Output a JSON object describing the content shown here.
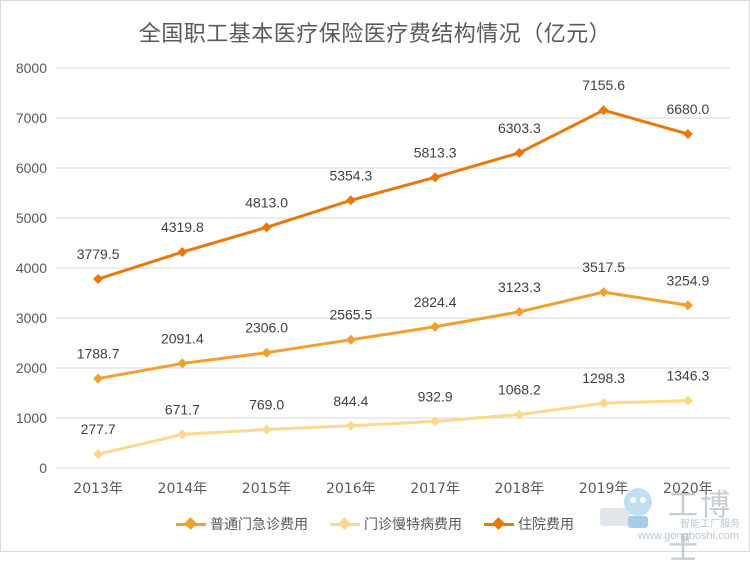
{
  "chart_data": {
    "type": "line",
    "title": "全国职工基本医疗保险医疗费结构情况（亿元）",
    "categories": [
      "2013年",
      "2014年",
      "2015年",
      "2016年",
      "2017年",
      "2018年",
      "2019年",
      "2020年"
    ],
    "ylim": [
      0,
      8000
    ],
    "yticks": [
      0,
      1000,
      2000,
      3000,
      4000,
      5000,
      6000,
      7000,
      8000
    ],
    "grid": true,
    "legend_position": "bottom",
    "series": [
      {
        "name": "普通门急诊费用",
        "color": "#F0A030",
        "values": [
          1788.7,
          2091.4,
          2306.0,
          2565.5,
          2824.4,
          3123.3,
          3517.5,
          3254.9
        ],
        "labels": [
          "1788.7",
          "2091.4",
          "2306.0",
          "2565.5",
          "2824.4",
          "3123.3",
          "3517.5",
          "3254.9"
        ]
      },
      {
        "name": "门诊慢特病费用",
        "color": "#FAD88C",
        "values": [
          277.7,
          671.7,
          769.0,
          844.4,
          932.9,
          1068.2,
          1298.3,
          1346.3
        ],
        "labels": [
          "277.7",
          "671.7",
          "769.0",
          "844.4",
          "932.9",
          "1068.2",
          "1298.3",
          "1346.3"
        ]
      },
      {
        "name": "住院费用",
        "color": "#E8780C",
        "values": [
          3779.5,
          4319.8,
          4813.0,
          5354.3,
          5813.3,
          6303.3,
          7155.6,
          6680.0
        ],
        "labels": [
          "3779.5",
          "4319.8",
          "4813.0",
          "5354.3",
          "5813.3",
          "6303.3",
          "7155.6",
          "6680.0"
        ]
      }
    ]
  },
  "watermark": {
    "logo": "工博士",
    "subtitle": "智能工厂服务商",
    "url": "www.gongboshi.com"
  }
}
